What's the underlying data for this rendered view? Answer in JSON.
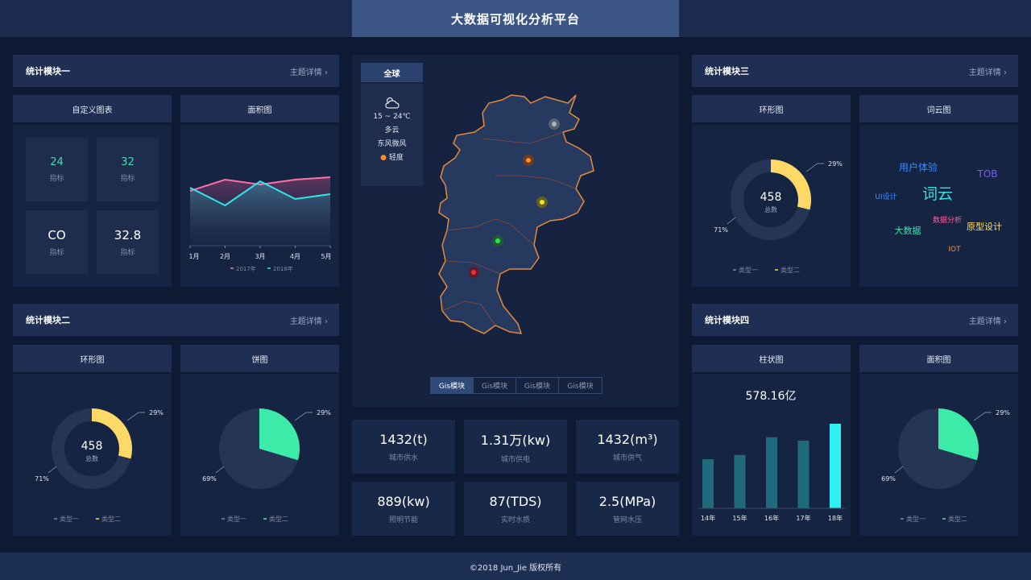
{
  "header": {
    "title": "大数据可视化分析平台"
  },
  "footer": {
    "copyright": "©2018 Jun_Jie 版权所有"
  },
  "detail_label": "主题详情 ›",
  "module1": {
    "title": "统计模块一",
    "custom": {
      "title": "自定义图表",
      "kpis": [
        {
          "value": "24",
          "label": "指标",
          "color": "#3ee0b0"
        },
        {
          "value": "32",
          "label": "指标",
          "color": "#3ee0b0"
        },
        {
          "value": "CO",
          "label": "指标",
          "color": "#ffffff"
        },
        {
          "value": "32.8",
          "label": "指标",
          "color": "#ffffff"
        }
      ]
    },
    "area": {
      "title": "面积图"
    }
  },
  "module2": {
    "title": "统计模块二",
    "ring": {
      "title": "环形图"
    },
    "pie": {
      "title": "饼图"
    }
  },
  "module3": {
    "title": "统计模块三",
    "ring": {
      "title": "环形图"
    },
    "cloud": {
      "title": "词云图"
    }
  },
  "module4": {
    "title": "统计模块四",
    "bar": {
      "title": "柱状图"
    },
    "area": {
      "title": "面积图"
    }
  },
  "map": {
    "global_label": "全球",
    "weather": {
      "icon": "cloud-sun-icon",
      "temp": "15 ~ 24℃",
      "desc": "多云",
      "wind": "东风微风",
      "air": "轻度"
    },
    "tabs": [
      "Gis模块",
      "Gis模块",
      "Gis模块",
      "Gis模块"
    ]
  },
  "stats": [
    {
      "value": "1432(t)",
      "label": "城市供水"
    },
    {
      "value": "1.31万(kw)",
      "label": "城市供电"
    },
    {
      "value": "1432(m³)",
      "label": "城市供气"
    },
    {
      "value": "889(kw)",
      "label": "照明节能"
    },
    {
      "value": "87(TDS)",
      "label": "实时水质"
    },
    {
      "value": "2.5(MPa)",
      "label": "管网水压"
    }
  ],
  "wordcloud": [
    {
      "text": "用户体验",
      "color": "#3b8cff"
    },
    {
      "text": "TOB",
      "color": "#7b5cff"
    },
    {
      "text": "UI设计",
      "color": "#3b8cff"
    },
    {
      "text": "词云",
      "color": "#33e0e0"
    },
    {
      "text": "数据分析",
      "color": "#ff5fa2"
    },
    {
      "text": "原型设计",
      "color": "#ffe066"
    },
    {
      "text": "大数据",
      "color": "#3ee0b0"
    },
    {
      "text": "IOT",
      "color": "#ff8a3c"
    }
  ],
  "chart_data": [
    {
      "id": "area1",
      "type": "area",
      "categories": [
        "1月",
        "2月",
        "3月",
        "4月",
        "5月"
      ],
      "series": [
        {
          "name": "2017年",
          "values": [
            68,
            82,
            76,
            82,
            85
          ],
          "color": "#ff6fa8"
        },
        {
          "name": "2018年",
          "values": [
            72,
            50,
            80,
            58,
            64
          ],
          "color": "#2fe6ee"
        }
      ],
      "ylim": [
        0,
        120
      ]
    },
    {
      "id": "ring_m2",
      "type": "pie",
      "donut": true,
      "center_value": "458",
      "center_label": "总数",
      "slices": [
        {
          "name": "类型一",
          "value": 71,
          "label": "71%",
          "color": "#243556"
        },
        {
          "name": "类型二",
          "value": 29,
          "label": "29%",
          "color": "#ffd966"
        }
      ]
    },
    {
      "id": "pie_m2",
      "type": "pie",
      "slices": [
        {
          "name": "类型一",
          "value": 69,
          "label": "69%",
          "color": "#243556"
        },
        {
          "name": "类型二",
          "value": 29,
          "label": "29%",
          "color": "#3deba8"
        }
      ]
    },
    {
      "id": "ring_m3",
      "type": "pie",
      "donut": true,
      "center_value": "458",
      "center_label": "总数",
      "slices": [
        {
          "name": "类型一",
          "value": 71,
          "label": "71%",
          "color": "#243556"
        },
        {
          "name": "类型二",
          "value": 29,
          "label": "29%",
          "color": "#ffd966"
        }
      ]
    },
    {
      "id": "bar_m4",
      "type": "bar",
      "title": "578.16亿",
      "categories": [
        "14年",
        "15年",
        "16年",
        "17年",
        "18年"
      ],
      "values": [
        58,
        63,
        84,
        80,
        100
      ],
      "ylim": [
        0,
        100
      ],
      "colors": [
        "#1f6b7d",
        "#1f6b7d",
        "#1f6b7d",
        "#1f6b7d",
        "#2ff0f0"
      ]
    },
    {
      "id": "pie_m4",
      "type": "pie",
      "slices": [
        {
          "name": "类型一",
          "value": 69,
          "label": "69%",
          "color": "#243556"
        },
        {
          "name": "类型二",
          "value": 29,
          "label": "29%",
          "color": "#3deba8"
        }
      ]
    }
  ]
}
